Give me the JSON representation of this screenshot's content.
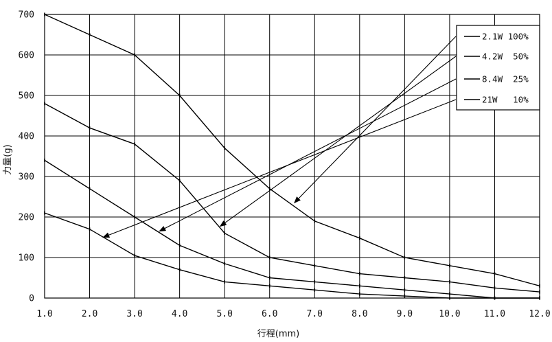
{
  "chart_data": {
    "type": "line",
    "xlabel": "行程(mm)",
    "ylabel": "力量(g)",
    "xlim": [
      1,
      12
    ],
    "ylim": [
      0,
      700
    ],
    "x_ticks": [
      1,
      2,
      3,
      4,
      5,
      6,
      7,
      8,
      9,
      10,
      11,
      12
    ],
    "x_tick_labels": [
      "1.0",
      "2.0",
      "3.0",
      "4.0",
      "5.0",
      "6.0",
      "7.0",
      "8.0",
      "9.0",
      "10.0",
      "11.0",
      "12.0"
    ],
    "y_ticks": [
      0,
      100,
      200,
      300,
      400,
      500,
      600,
      700
    ],
    "y_tick_labels": [
      "0",
      "100",
      "200",
      "300",
      "400",
      "500",
      "600",
      "700"
    ],
    "grid": true,
    "legend_position": "top-right",
    "series": [
      {
        "name": "2.1W 100%",
        "x": [
          1,
          2,
          3,
          4,
          5,
          6,
          7,
          8,
          9,
          10,
          11,
          12
        ],
        "y": [
          700,
          650,
          600,
          500,
          370,
          270,
          190,
          148,
          100,
          80,
          60,
          30
        ]
      },
      {
        "name": "4.2W  50%",
        "x": [
          1,
          2,
          3,
          4,
          5,
          6,
          7,
          8,
          9,
          10,
          11,
          12
        ],
        "y": [
          480,
          420,
          380,
          290,
          160,
          100,
          80,
          60,
          50,
          40,
          25,
          15
        ]
      },
      {
        "name": "8.4W  25%",
        "x": [
          1,
          2,
          3,
          4,
          5,
          6,
          7,
          8,
          9,
          10,
          11,
          12
        ],
        "y": [
          340,
          270,
          200,
          130,
          85,
          50,
          40,
          30,
          20,
          10,
          0,
          0
        ]
      },
      {
        "name": "21W   10%",
        "x": [
          1,
          2,
          3,
          4,
          5,
          6,
          7,
          8,
          9,
          10,
          11,
          12
        ],
        "y": [
          210,
          170,
          105,
          70,
          40,
          30,
          20,
          10,
          5,
          0,
          0,
          0
        ]
      }
    ],
    "annotations": [
      {
        "series": "2.1W 100%",
        "target": [
          6.55,
          235
        ]
      },
      {
        "series": "4.2W  50%",
        "target": [
          4.9,
          177
        ]
      },
      {
        "series": "8.4W  25%",
        "target": [
          3.55,
          165
        ]
      },
      {
        "series": "21W   10%",
        "target": [
          2.3,
          150
        ]
      }
    ]
  }
}
